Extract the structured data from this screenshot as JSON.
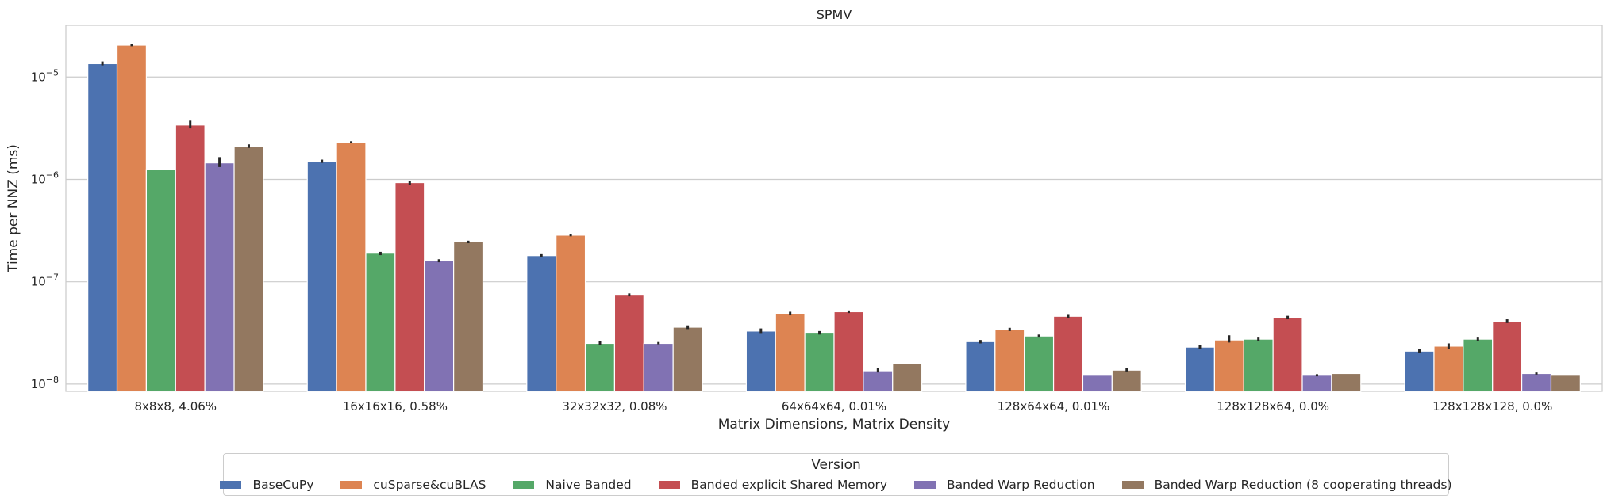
{
  "chart_data": {
    "type": "bar",
    "title": "SPMV",
    "xlabel": "Matrix Dimensions, Matrix Density",
    "ylabel": "Time per NNZ (ms)",
    "yscale": "log",
    "ylim": [
      8.5e-09,
      3.2e-05
    ],
    "yticks": [
      {
        "value": 1e-08,
        "base": "10",
        "exp": "−8"
      },
      {
        "value": 1e-07,
        "base": "10",
        "exp": "−7"
      },
      {
        "value": 1e-06,
        "base": "10",
        "exp": "−6"
      },
      {
        "value": 1e-05,
        "base": "10",
        "exp": "−5"
      }
    ],
    "grid": "horizontal",
    "categories": [
      "8x8x8, 4.06%",
      "16x16x16, 0.58%",
      "32x32x32, 0.08%",
      "64x64x64, 0.01%",
      "128x64x64, 0.01%",
      "128x128x64, 0.0%",
      "128x128x128, 0.0%"
    ],
    "legend": {
      "title": "Version",
      "position": "bottom-center"
    },
    "series": [
      {
        "name": "BaseCuPy",
        "color": "#4c72b0",
        "values": [
          1.35e-05,
          1.5e-06,
          1.8e-07,
          3.3e-08,
          2.6e-08,
          2.3e-08,
          2.1e-08
        ],
        "err": [
          [
            1.3e-05,
            1.42e-05
          ],
          [
            1.45e-06,
            1.56e-06
          ],
          [
            1.74e-07,
            1.86e-07
          ],
          [
            3.1e-08,
            3.5e-08
          ],
          [
            2.5e-08,
            2.7e-08
          ],
          [
            2.2e-08,
            2.4e-08
          ],
          [
            2e-08,
            2.2e-08
          ]
        ]
      },
      {
        "name": "cuSparse&cuBLAS",
        "color": "#dd8452",
        "values": [
          2.05e-05,
          2.3e-06,
          2.85e-07,
          4.9e-08,
          3.4e-08,
          2.7e-08,
          2.35e-08
        ],
        "err": [
          [
            2e-05,
            2.12e-05
          ],
          [
            2.25e-06,
            2.36e-06
          ],
          [
            2.78e-07,
            2.93e-07
          ],
          [
            4.7e-08,
            5.1e-08
          ],
          [
            3.3e-08,
            3.55e-08
          ],
          [
            2.55e-08,
            3e-08
          ],
          [
            2.2e-08,
            2.5e-08
          ]
        ]
      },
      {
        "name": "Naive Banded",
        "color": "#55a868",
        "values": [
          1.25e-06,
          1.9e-07,
          2.5e-08,
          3.15e-08,
          2.95e-08,
          2.75e-08,
          2.75e-08
        ],
        "err": [
          null,
          [
            1.82e-07,
            1.96e-07
          ],
          [
            2.4e-08,
            2.62e-08
          ],
          [
            3.05e-08,
            3.3e-08
          ],
          [
            2.85e-08,
            3.05e-08
          ],
          [
            2.65e-08,
            2.85e-08
          ],
          [
            2.65e-08,
            2.85e-08
          ]
        ]
      },
      {
        "name": "Banded explicit Shared Memory",
        "color": "#c44e52",
        "values": [
          3.4e-06,
          9.3e-07,
          7.4e-08,
          5.1e-08,
          4.6e-08,
          4.45e-08,
          4.1e-08
        ],
        "err": [
          [
            3.15e-06,
            3.75e-06
          ],
          [
            8.9e-07,
            9.7e-07
          ],
          [
            7.2e-08,
            7.7e-08
          ],
          [
            4.95e-08,
            5.25e-08
          ],
          [
            4.45e-08,
            4.75e-08
          ],
          [
            4.3e-08,
            4.65e-08
          ],
          [
            3.95e-08,
            4.3e-08
          ]
        ]
      },
      {
        "name": "Banded Warp Reduction",
        "color": "#8172b3",
        "values": [
          1.45e-06,
          1.6e-07,
          2.5e-08,
          1.35e-08,
          1.22e-08,
          1.22e-08,
          1.27e-08
        ],
        "err": [
          [
            1.32e-06,
            1.65e-06
          ],
          [
            1.55e-07,
            1.66e-07
          ],
          [
            2.45e-08,
            2.58e-08
          ],
          [
            1.3e-08,
            1.45e-08
          ],
          null,
          [
            1.19e-08,
            1.25e-08
          ],
          [
            1.24e-08,
            1.3e-08
          ]
        ]
      },
      {
        "name": "Banded Warp Reduction (8 cooperating threads)",
        "color": "#937860",
        "values": [
          2.1e-06,
          2.45e-07,
          3.6e-08,
          1.58e-08,
          1.37e-08,
          1.27e-08,
          1.22e-08
        ],
        "err": [
          [
            2.03e-06,
            2.2e-06
          ],
          [
            2.38e-07,
            2.52e-07
          ],
          [
            3.45e-08,
            3.75e-08
          ],
          null,
          [
            1.33e-08,
            1.43e-08
          ],
          null,
          null
        ]
      }
    ]
  }
}
